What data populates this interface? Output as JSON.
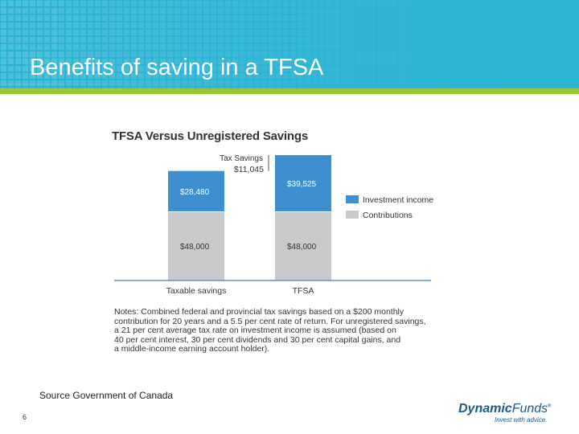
{
  "slide": {
    "title": "Benefits of saving in a TFSA",
    "source": "Source Government of Canada",
    "page_number": "6"
  },
  "logo": {
    "brand": "Dynamic",
    "brand_second": "Funds",
    "registered": "®",
    "tagline": "Invest with advice."
  },
  "notes": [
    "Notes: Combined federal and provincial tax savings based on a $200 monthly",
    "contribution for 20 years and a 5.5 per cent rate of return. For unregistered savings,",
    "a 21 per cent average tax rate on investment income is assumed (based on",
    "40 per cent interest, 30 per cent dividends and 30 per cent capital gains, and",
    "a middle-income earning account holder)."
  ],
  "colors": {
    "header": "#2bb4d4",
    "accent_green": "#9bc63b",
    "investment_income": "#3d8fd0",
    "contributions": "#c9c9cb",
    "baseline": "#5b93c5"
  },
  "chart_data": {
    "type": "bar",
    "stacked": true,
    "title": "TFSA Versus Unregistered Savings",
    "categories": [
      "Taxable savings",
      "TFSA"
    ],
    "series": [
      {
        "name": "Contributions",
        "values": [
          48000,
          48000
        ],
        "labels": [
          "$48,000",
          "$48,000"
        ]
      },
      {
        "name": "Investment income",
        "values": [
          28480,
          39525
        ],
        "labels": [
          "$28,480",
          "$39,525"
        ]
      }
    ],
    "legend": [
      "Investment income",
      "Contributions"
    ],
    "legend_position": "right",
    "annotation": {
      "line1": "Tax Savings",
      "line2": "$11,045",
      "value": 11045
    },
    "xlabel": "",
    "ylabel": "",
    "ylim": [
      0,
      87525
    ]
  }
}
